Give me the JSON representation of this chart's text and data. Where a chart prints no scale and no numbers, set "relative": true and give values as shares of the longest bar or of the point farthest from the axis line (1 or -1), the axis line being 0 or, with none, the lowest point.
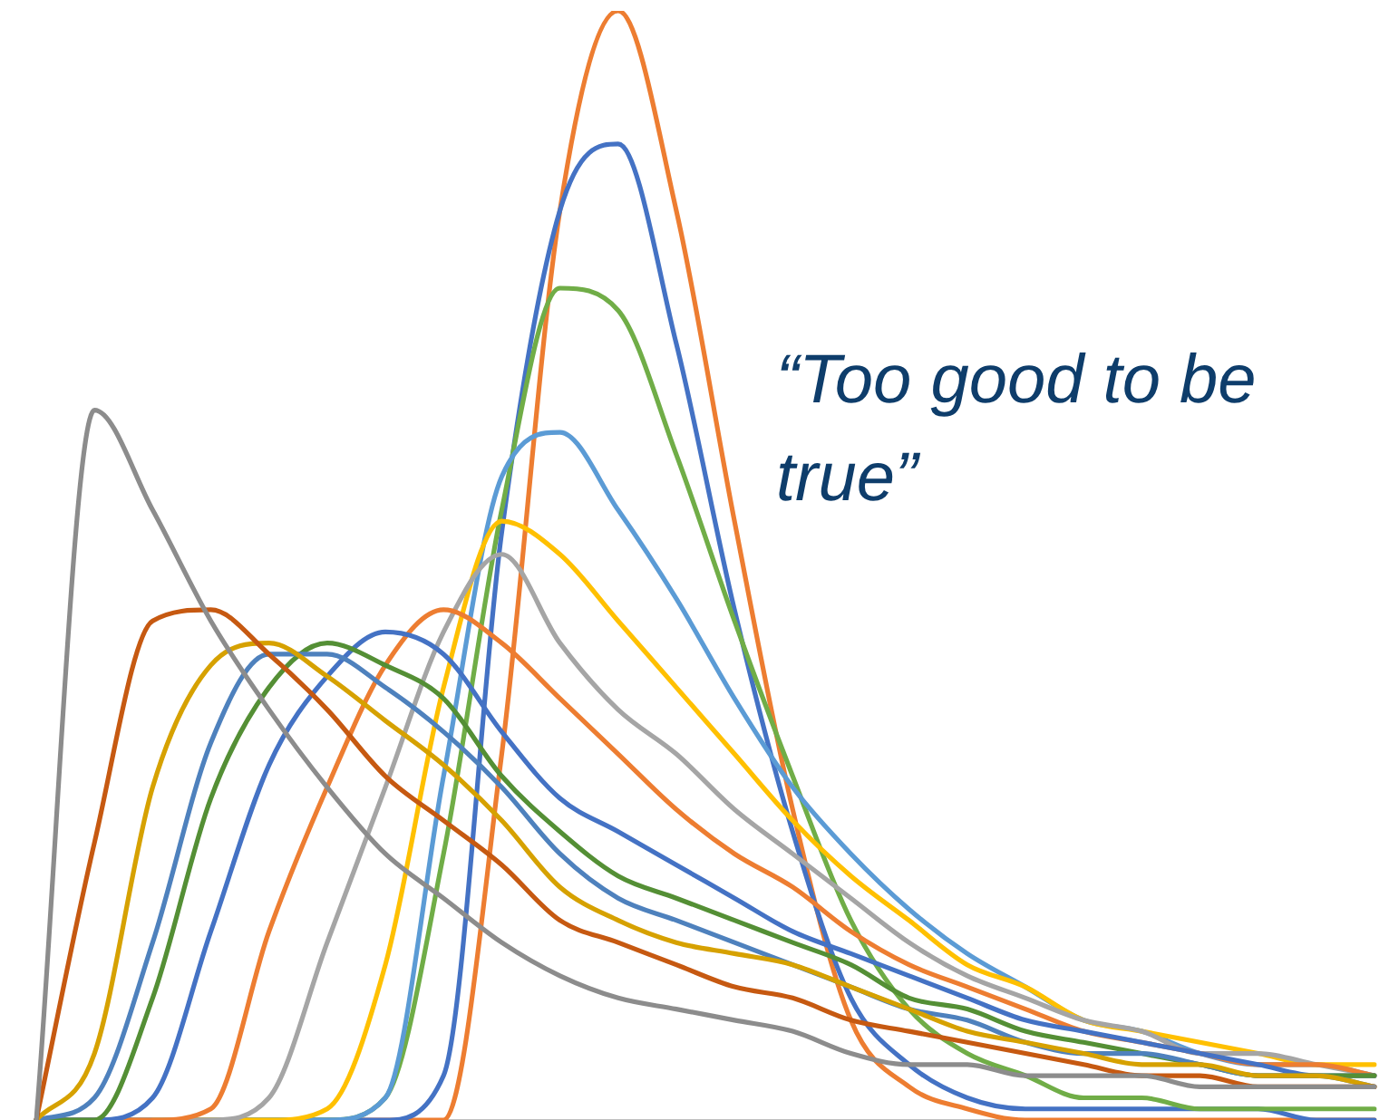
{
  "chart_data": {
    "type": "line",
    "relative": true,
    "marker": "none",
    "legend": false,
    "grid": false,
    "annotations": [
      "“Too good to be true”"
    ],
    "categories": [
      null,
      null,
      null,
      null,
      null,
      null,
      null,
      null,
      null,
      null,
      null,
      null,
      null,
      null,
      null,
      null,
      null,
      null,
      null,
      null,
      null,
      null,
      null,
      null
    ],
    "series": [
      {
        "color": "#8c8c8c",
        "values": [
          0,
          0.64,
          0.55,
          0.45,
          0.37,
          0.3,
          0.24,
          0.2,
          0.16,
          0.13,
          0.11,
          0.1,
          0.09,
          0.08,
          0.06,
          0.05,
          0.05,
          0.04,
          0.04,
          0.04,
          0.03,
          0.03,
          0.03,
          0.03
        ]
      },
      {
        "color": "#c65911",
        "values": [
          0,
          0.25,
          0.45,
          0.46,
          0.42,
          0.37,
          0.31,
          0.27,
          0.23,
          0.18,
          0.16,
          0.14,
          0.12,
          0.11,
          0.09,
          0.08,
          0.07,
          0.06,
          0.05,
          0.04,
          0.04,
          0.03,
          0.03,
          0.03
        ]
      },
      {
        "color": "#d6a100",
        "values": [
          0,
          0.06,
          0.3,
          0.41,
          0.43,
          0.4,
          0.36,
          0.32,
          0.27,
          0.21,
          0.18,
          0.16,
          0.15,
          0.14,
          0.12,
          0.1,
          0.08,
          0.07,
          0.06,
          0.05,
          0.05,
          0.04,
          0.04,
          0.03
        ]
      },
      {
        "color": "#4e81bd",
        "values": [
          0,
          0.02,
          0.16,
          0.34,
          0.42,
          0.42,
          0.39,
          0.35,
          0.3,
          0.24,
          0.2,
          0.18,
          0.16,
          0.14,
          0.12,
          0.1,
          0.09,
          0.07,
          0.06,
          0.06,
          0.05,
          0.04,
          0.04,
          0.03
        ]
      },
      {
        "color": "#548f35",
        "values": [
          0,
          0,
          0.11,
          0.29,
          0.39,
          0.43,
          0.41,
          0.38,
          0.31,
          0.26,
          0.22,
          0.2,
          0.18,
          0.16,
          0.14,
          0.11,
          0.1,
          0.08,
          0.07,
          0.06,
          0.05,
          0.04,
          0.04,
          0.04
        ]
      },
      {
        "color": "#4472c4",
        "values": [
          0,
          0,
          0.02,
          0.17,
          0.32,
          0.4,
          0.44,
          0.42,
          0.35,
          0.29,
          0.26,
          0.23,
          0.2,
          0.17,
          0.15,
          0.13,
          0.11,
          0.09,
          0.08,
          0.07,
          0.06,
          0.05,
          0.04,
          0.04
        ]
      },
      {
        "color": "#ed7d31",
        "values": [
          0,
          0,
          0,
          0.01,
          0.17,
          0.3,
          0.41,
          0.46,
          0.43,
          0.38,
          0.33,
          0.28,
          0.24,
          0.21,
          0.17,
          0.14,
          0.12,
          0.1,
          0.08,
          0.07,
          0.06,
          0.05,
          0.05,
          0.04
        ]
      },
      {
        "color": "#a5a5a5",
        "values": [
          0,
          0,
          0,
          0,
          0.02,
          0.16,
          0.3,
          0.44,
          0.51,
          0.43,
          0.37,
          0.33,
          0.28,
          0.24,
          0.2,
          0.16,
          0.13,
          0.11,
          0.09,
          0.08,
          0.06,
          0.06,
          0.05,
          0.04
        ]
      },
      {
        "color": "#ffc000",
        "values": [
          null,
          null,
          0,
          0,
          0,
          0.01,
          0.14,
          0.39,
          0.54,
          0.51,
          0.45,
          0.39,
          0.33,
          0.27,
          0.22,
          0.18,
          0.14,
          0.12,
          0.09,
          0.08,
          0.07,
          0.06,
          0.05,
          0.05
        ]
      },
      {
        "color": "#5b9bd5",
        "values": [
          0,
          0,
          0,
          0,
          0,
          0,
          0.02,
          0.31,
          0.58,
          0.62,
          0.55,
          0.47,
          0.38,
          0.3,
          0.24,
          0.19,
          0.15,
          0.12,
          0.09,
          0.08,
          0.06,
          0.05,
          0.05,
          0.04
        ]
      },
      {
        "color": "#70ad47",
        "values": [
          0,
          0,
          0,
          0,
          0,
          0,
          0.02,
          0.24,
          0.55,
          0.75,
          0.73,
          0.6,
          0.45,
          0.31,
          0.18,
          0.1,
          0.06,
          0.04,
          0.02,
          0.02,
          0.01,
          0.01,
          0.01,
          0.01
        ]
      },
      {
        "color": "#4472c4",
        "values": [
          0,
          0,
          0,
          0,
          0,
          0,
          0,
          0.04,
          0.53,
          0.82,
          0.88,
          0.7,
          0.46,
          0.26,
          0.11,
          0.05,
          0.02,
          0.01,
          0.01,
          0.01,
          0.01,
          0.01,
          0,
          0
        ]
      },
      {
        "color": "#ed7d31",
        "values": [
          0,
          0,
          0,
          0,
          0,
          0,
          0,
          0,
          0.33,
          0.82,
          1,
          0.82,
          0.54,
          0.28,
          0.09,
          0.03,
          0.01,
          0,
          0,
          0,
          0,
          0,
          0,
          0
        ]
      }
    ]
  }
}
